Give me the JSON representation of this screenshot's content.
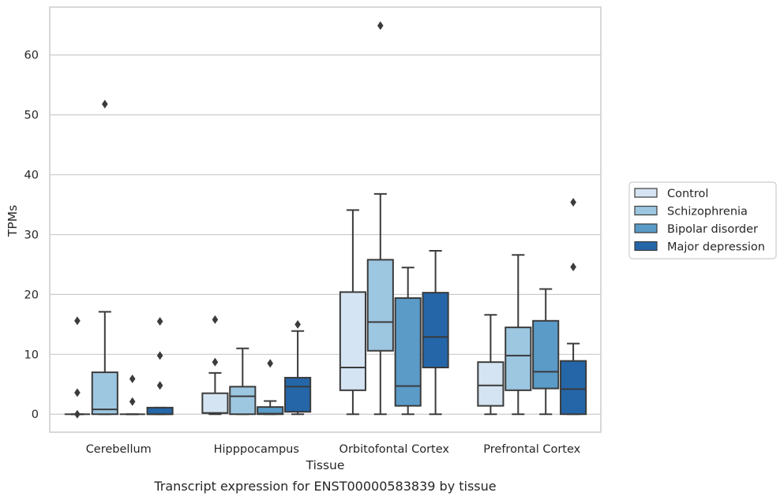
{
  "chart_data": {
    "type": "box",
    "caption": "Transcript expression for ENST00000583839 by tissue",
    "xlabel": "Tissue",
    "ylabel": "TPMs",
    "ylim": [
      -3,
      68
    ],
    "yticks": [
      0,
      10,
      20,
      30,
      40,
      50,
      60
    ],
    "grid": true,
    "legend_position": "right",
    "categories": [
      "Cerebellum",
      "Hipppocampus",
      "Orbitofontal Cortex",
      "Prefrontal Cortex"
    ],
    "series": [
      {
        "name": "Control",
        "color": "#d5e4f2",
        "boxes": [
          {
            "whislo": 0,
            "q1": 0,
            "med": 0,
            "q3": 0,
            "whishi": 0,
            "fliers": [
              15.6,
              3.6,
              0
            ]
          },
          {
            "whislo": 0,
            "q1": 0.2,
            "med": 0.2,
            "q3": 3.5,
            "whishi": 6.9,
            "fliers": [
              15.8,
              8.7
            ]
          },
          {
            "whislo": 0,
            "q1": 4.0,
            "med": 7.8,
            "q3": 20.4,
            "whishi": 34.1,
            "fliers": []
          },
          {
            "whislo": 0,
            "q1": 1.4,
            "med": 4.8,
            "q3": 8.7,
            "whishi": 16.6,
            "fliers": []
          }
        ]
      },
      {
        "name": "Schizophrenia",
        "color": "#9dc7e0",
        "boxes": [
          {
            "whislo": 0,
            "q1": 0,
            "med": 0.8,
            "q3": 7.0,
            "whishi": 17.1,
            "fliers": [
              51.8
            ]
          },
          {
            "whislo": 0,
            "q1": 0,
            "med": 3.0,
            "q3": 4.6,
            "whishi": 11.0,
            "fliers": []
          },
          {
            "whislo": 0,
            "q1": 10.6,
            "med": 15.4,
            "q3": 25.8,
            "whishi": 36.8,
            "fliers": [
              64.9
            ]
          },
          {
            "whislo": 0,
            "q1": 4.0,
            "med": 9.8,
            "q3": 14.5,
            "whishi": 26.6,
            "fliers": []
          }
        ]
      },
      {
        "name": "Bipolar disorder",
        "color": "#5a9bc8",
        "boxes": [
          {
            "whislo": 0,
            "q1": 0,
            "med": 0,
            "q3": 0,
            "whishi": 0,
            "fliers": [
              5.9,
              2.1
            ]
          },
          {
            "whislo": 0,
            "q1": 0,
            "med": 0.1,
            "q3": 1.2,
            "whishi": 2.2,
            "fliers": [
              8.5
            ]
          },
          {
            "whislo": 0,
            "q1": 1.4,
            "med": 4.7,
            "q3": 19.4,
            "whishi": 24.5,
            "fliers": []
          },
          {
            "whislo": 0,
            "q1": 4.3,
            "med": 7.1,
            "q3": 15.6,
            "whishi": 20.9,
            "fliers": []
          }
        ]
      },
      {
        "name": "Major depression",
        "color": "#2466a8",
        "boxes": [
          {
            "whislo": 0,
            "q1": 0,
            "med": 0,
            "q3": 1.1,
            "whishi": 1.1,
            "fliers": [
              15.5,
              9.8,
              4.8
            ]
          },
          {
            "whislo": 0,
            "q1": 0.4,
            "med": 4.6,
            "q3": 6.1,
            "whishi": 13.9,
            "fliers": [
              15.0
            ]
          },
          {
            "whislo": 0,
            "q1": 7.8,
            "med": 12.9,
            "q3": 20.3,
            "whishi": 27.3,
            "fliers": []
          },
          {
            "whislo": 0,
            "q1": 0,
            "med": 4.2,
            "q3": 8.9,
            "whishi": 11.8,
            "fliers": [
              24.6,
              35.4
            ]
          }
        ]
      }
    ]
  }
}
